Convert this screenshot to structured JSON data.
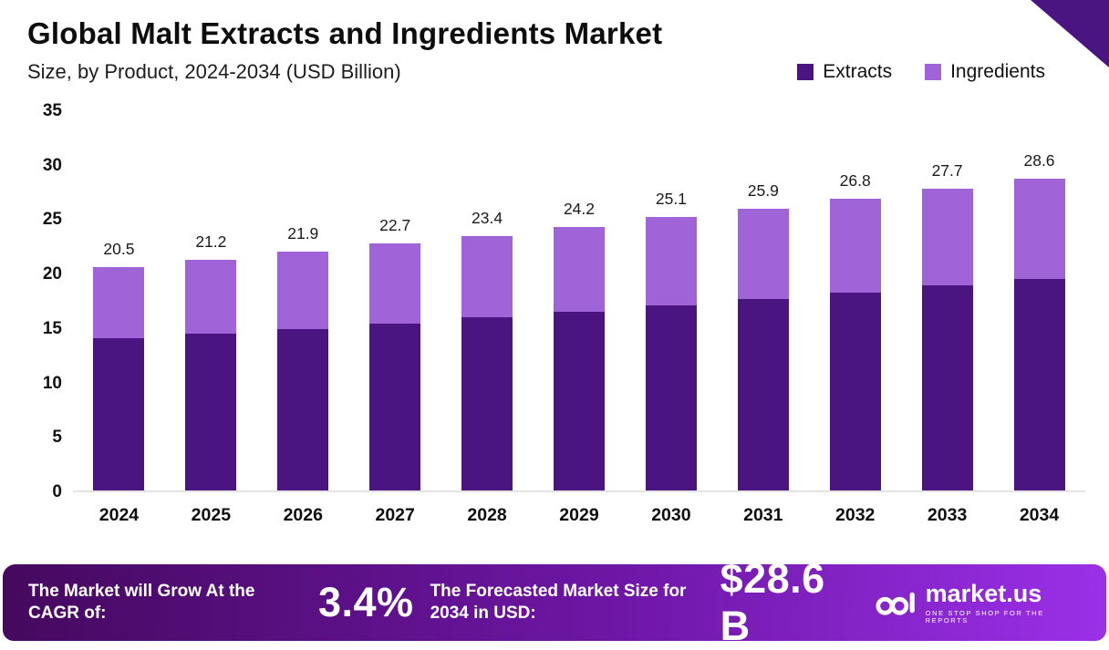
{
  "title": "Global Malt Extracts and Ingredients Market",
  "subtitle": "Size, by Product, 2024-2034 (USD Billion)",
  "legend": [
    {
      "label": "Extracts",
      "color": "#4a1580"
    },
    {
      "label": "Ingredients",
      "color": "#a163d8"
    }
  ],
  "chart_data": {
    "type": "bar",
    "stacked": true,
    "title": "Global Malt Extracts and Ingredients Market Size, by Product, 2024-2034 (USD Billion)",
    "categories": [
      "2024",
      "2025",
      "2026",
      "2027",
      "2028",
      "2029",
      "2030",
      "2031",
      "2032",
      "2033",
      "2034"
    ],
    "series": [
      {
        "name": "Extracts",
        "color": "#4a1580",
        "values": [
          14.0,
          14.4,
          14.8,
          15.3,
          15.9,
          16.4,
          17.0,
          17.6,
          18.2,
          18.8,
          19.4
        ]
      },
      {
        "name": "Ingredients",
        "color": "#a163d8",
        "values": [
          6.5,
          6.8,
          7.1,
          7.4,
          7.5,
          7.8,
          8.1,
          8.3,
          8.6,
          8.9,
          9.2
        ]
      }
    ],
    "totals": [
      20.5,
      21.2,
      21.9,
      22.7,
      23.4,
      24.2,
      25.1,
      25.9,
      26.8,
      27.7,
      28.6
    ],
    "xlabel": "",
    "ylabel": "",
    "ylim": [
      0,
      35
    ],
    "yticks": [
      0,
      5,
      10,
      15,
      20,
      25,
      30,
      35
    ],
    "grid": false,
    "legend_position": "top-right"
  },
  "footer": {
    "left_label": "The Market will Grow At the CAGR of:",
    "cagr_value": "3.4%",
    "mid_label": "The Forecasted Market Size for 2034 in USD:",
    "forecast_value": "$28.6 B",
    "brand": {
      "name": "market.us",
      "tagline": "ONE STOP SHOP FOR THE REPORTS"
    }
  }
}
